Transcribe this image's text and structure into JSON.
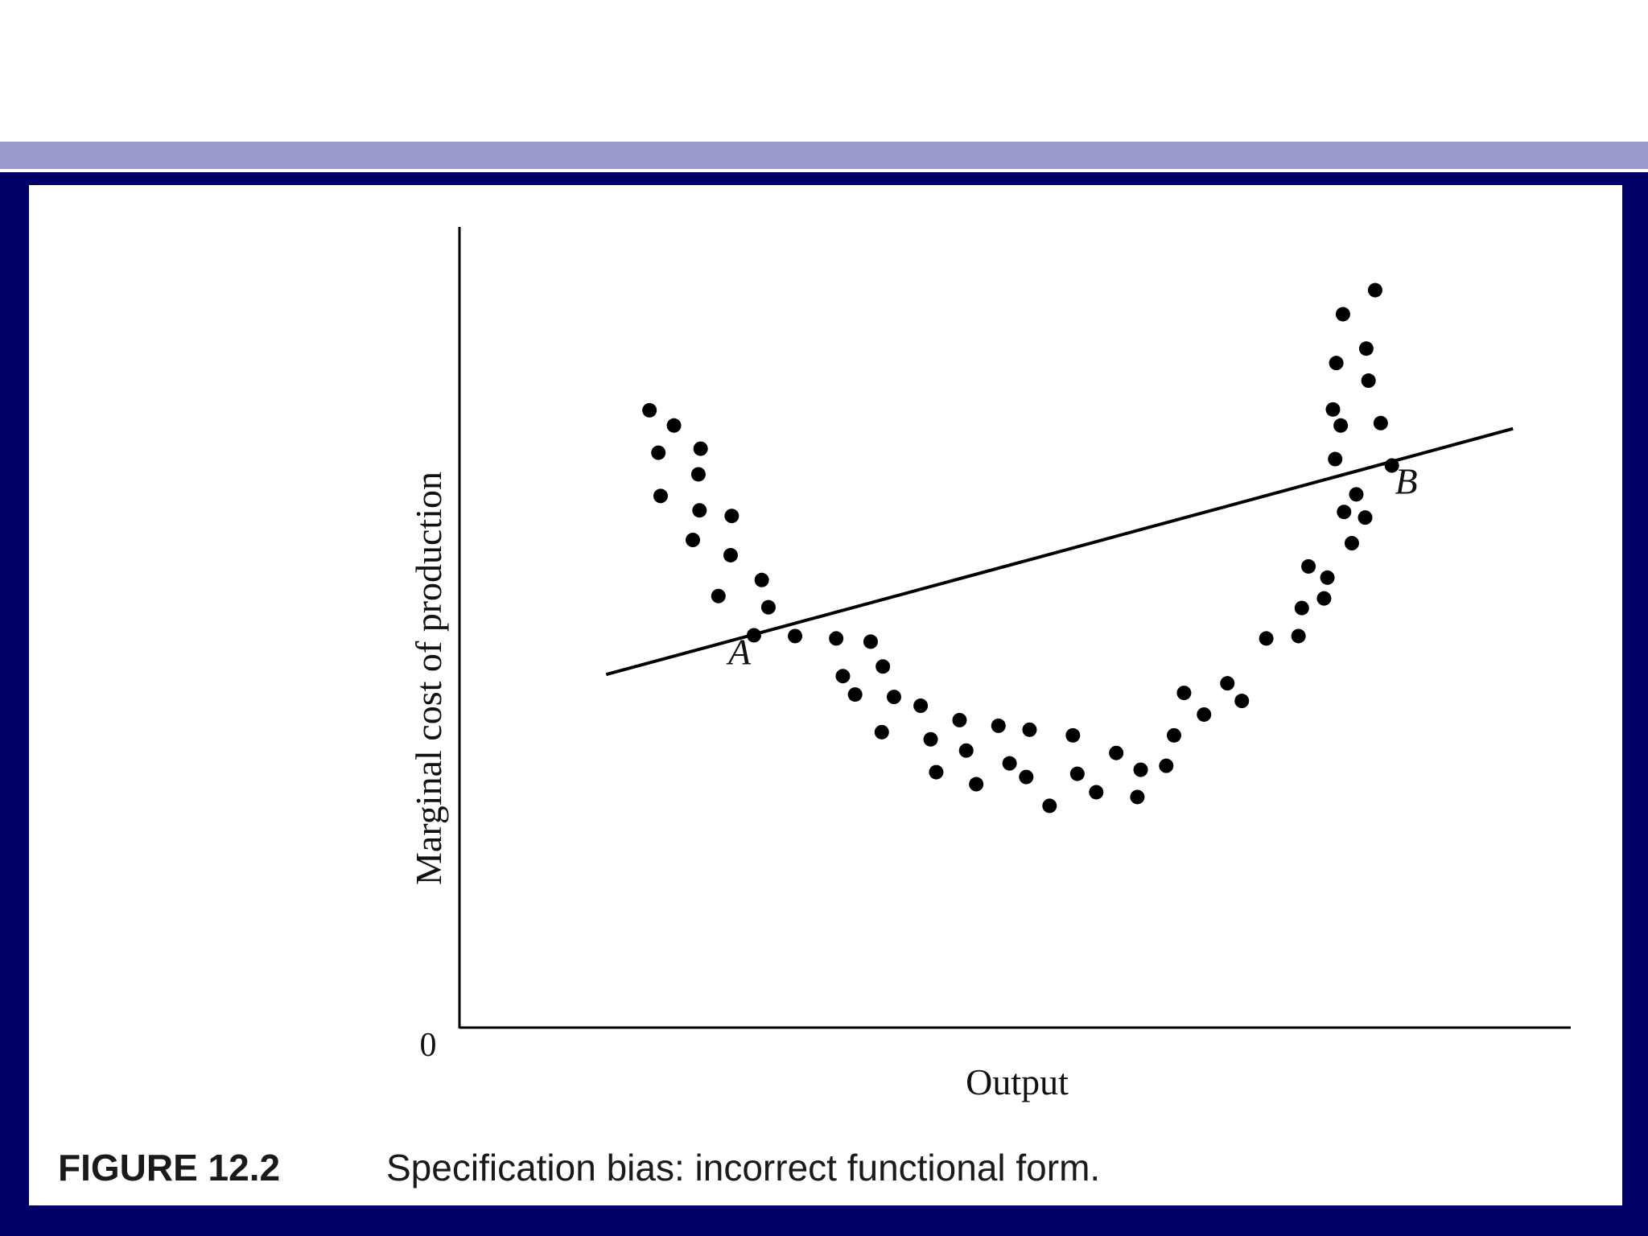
{
  "colors": {
    "frame": "#000066",
    "accent_bar": "#9999cc",
    "ink": "#000000"
  },
  "caption": {
    "label": "FIGURE 12.2",
    "text": "Specification bias: incorrect functional form."
  },
  "chart_data": {
    "type": "scatter",
    "title": "",
    "xlabel": "Output",
    "ylabel": "Marginal cost of production",
    "origin_label": "0",
    "xlim": [
      0,
      100
    ],
    "ylim": [
      0,
      100
    ],
    "grid": false,
    "legend": "none",
    "points": [
      {
        "x": 17.1,
        "y": 77.1
      },
      {
        "x": 19.3,
        "y": 75.2
      },
      {
        "x": 17.9,
        "y": 71.8
      },
      {
        "x": 21.7,
        "y": 72.3
      },
      {
        "x": 21.5,
        "y": 69.1
      },
      {
        "x": 18.1,
        "y": 66.4
      },
      {
        "x": 21.6,
        "y": 64.6
      },
      {
        "x": 24.5,
        "y": 63.9
      },
      {
        "x": 21.0,
        "y": 60.9
      },
      {
        "x": 24.4,
        "y": 59.0
      },
      {
        "x": 23.3,
        "y": 53.9
      },
      {
        "x": 27.2,
        "y": 55.9
      },
      {
        "x": 27.8,
        "y": 52.5
      },
      {
        "x": 30.2,
        "y": 48.9
      },
      {
        "x": 33.9,
        "y": 48.6
      },
      {
        "x": 37.0,
        "y": 48.2
      },
      {
        "x": 34.5,
        "y": 43.9
      },
      {
        "x": 38.1,
        "y": 45.1
      },
      {
        "x": 35.6,
        "y": 41.6
      },
      {
        "x": 39.1,
        "y": 41.3
      },
      {
        "x": 38.0,
        "y": 36.9
      },
      {
        "x": 41.5,
        "y": 40.2
      },
      {
        "x": 42.4,
        "y": 36.0
      },
      {
        "x": 42.9,
        "y": 31.9
      },
      {
        "x": 45.0,
        "y": 38.4
      },
      {
        "x": 45.6,
        "y": 34.6
      },
      {
        "x": 46.5,
        "y": 30.4
      },
      {
        "x": 48.5,
        "y": 37.7
      },
      {
        "x": 49.5,
        "y": 33.0
      },
      {
        "x": 51.3,
        "y": 37.2
      },
      {
        "x": 51.0,
        "y": 31.3
      },
      {
        "x": 53.1,
        "y": 27.7
      },
      {
        "x": 55.2,
        "y": 36.5
      },
      {
        "x": 55.6,
        "y": 31.7
      },
      {
        "x": 57.3,
        "y": 29.4
      },
      {
        "x": 59.1,
        "y": 34.3
      },
      {
        "x": 61.3,
        "y": 32.2
      },
      {
        "x": 61.0,
        "y": 28.8
      },
      {
        "x": 64.3,
        "y": 36.5
      },
      {
        "x": 63.6,
        "y": 32.7
      },
      {
        "x": 67.0,
        "y": 39.1
      },
      {
        "x": 65.2,
        "y": 41.8
      },
      {
        "x": 69.1,
        "y": 43.0
      },
      {
        "x": 70.4,
        "y": 40.8
      },
      {
        "x": 72.6,
        "y": 48.6
      },
      {
        "x": 75.5,
        "y": 48.9
      },
      {
        "x": 77.8,
        "y": 53.6
      },
      {
        "x": 75.8,
        "y": 52.4
      },
      {
        "x": 78.1,
        "y": 56.2
      },
      {
        "x": 76.4,
        "y": 57.6
      },
      {
        "x": 80.3,
        "y": 60.5
      },
      {
        "x": 81.5,
        "y": 63.7
      },
      {
        "x": 79.6,
        "y": 64.4
      },
      {
        "x": 80.7,
        "y": 66.6
      },
      {
        "x": 78.8,
        "y": 71.0
      },
      {
        "x": 79.3,
        "y": 75.2
      },
      {
        "x": 82.9,
        "y": 75.5
      },
      {
        "x": 78.6,
        "y": 77.2
      },
      {
        "x": 81.8,
        "y": 80.8
      },
      {
        "x": 78.9,
        "y": 83.0
      },
      {
        "x": 81.6,
        "y": 84.8
      },
      {
        "x": 79.5,
        "y": 89.1
      },
      {
        "x": 82.4,
        "y": 92.1
      }
    ],
    "line": {
      "x": [
        13.2,
        94.8
      ],
      "y": [
        44.1,
        74.8
      ]
    },
    "annotations": [
      {
        "text": "A",
        "x": 25.2,
        "y": 45.4,
        "dot_x": 26.5,
        "dot_y": 49.0
      },
      {
        "text": "B",
        "x": 85.2,
        "y": 66.7,
        "dot_x": 83.9,
        "dot_y": 70.2
      }
    ]
  }
}
